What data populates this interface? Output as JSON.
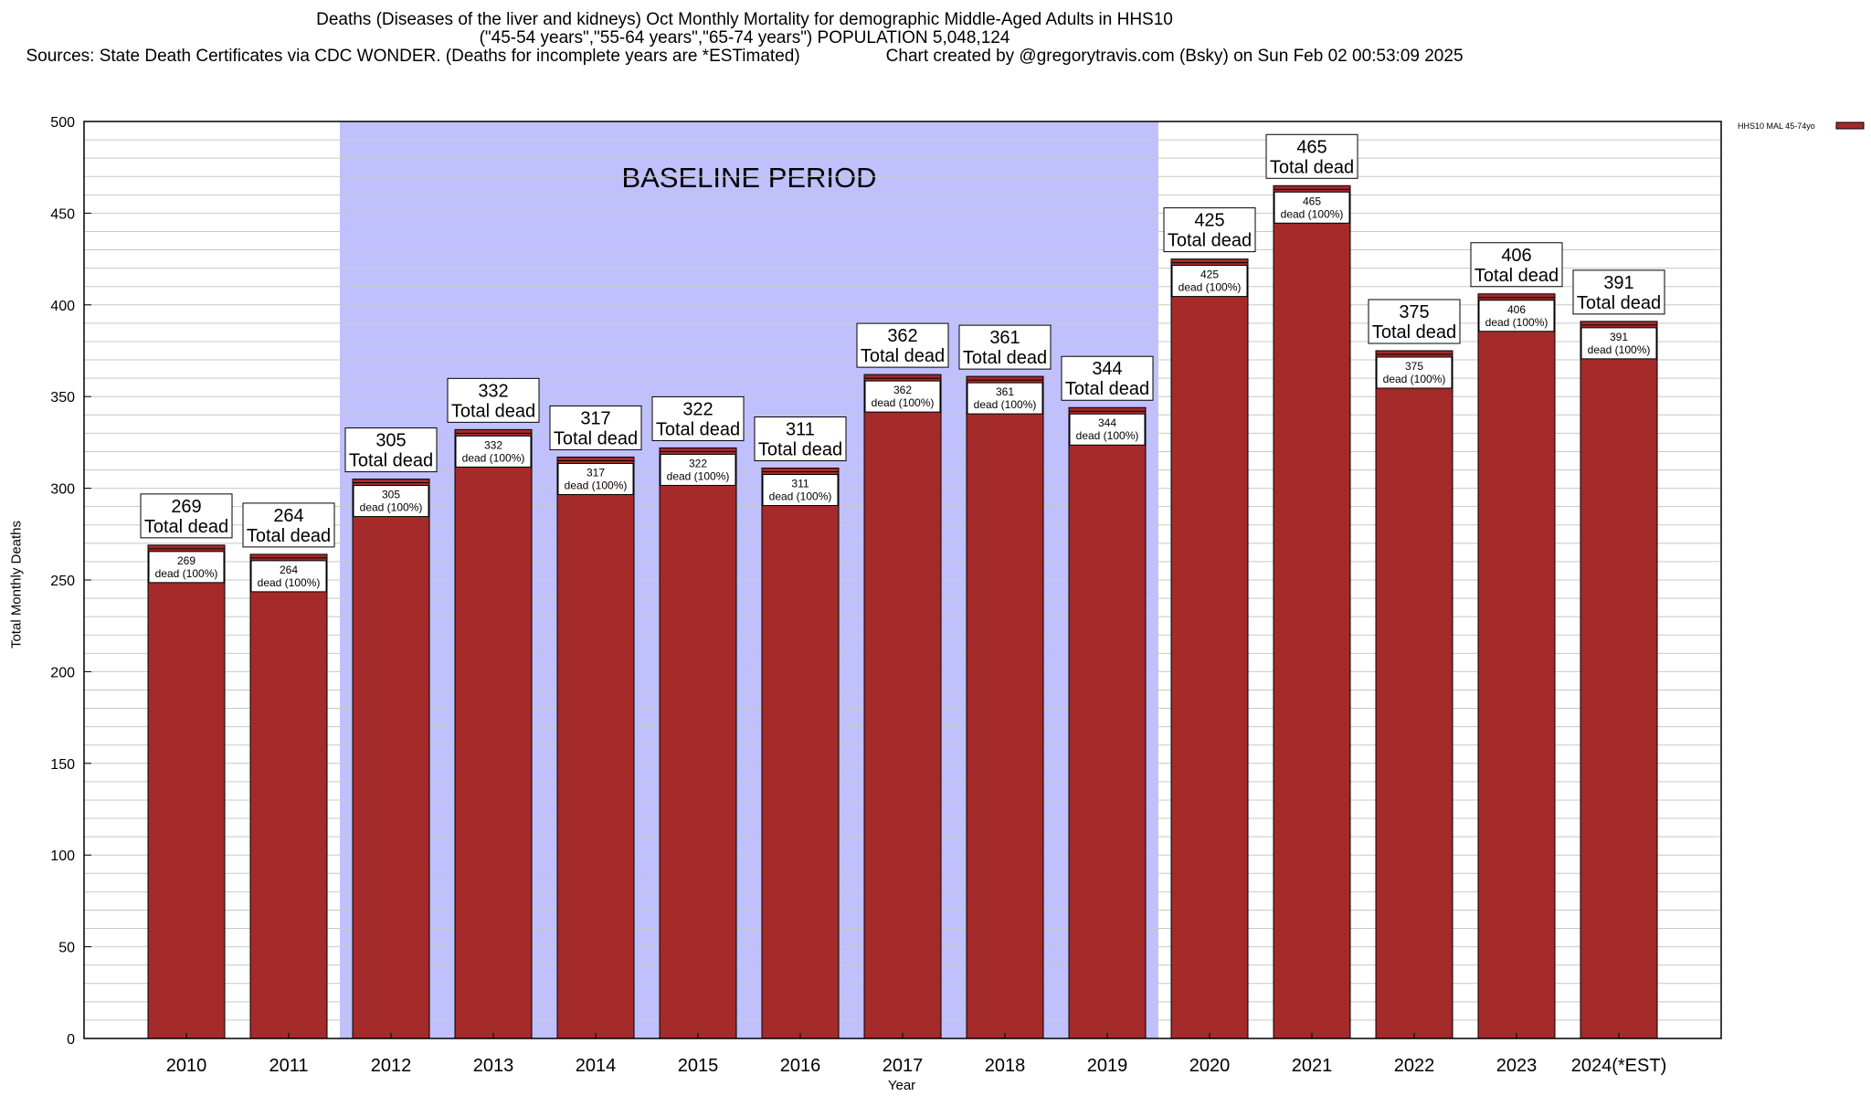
{
  "title": {
    "line1": "Deaths (Diseases of the liver and kidneys) Oct Monthly Mortality for demographic Middle-Aged Adults in HHS10",
    "line2": "(\"45-54 years\",\"55-64 years\",\"65-74 years\") POPULATION 5,048,124",
    "line3_left": "Sources: State Death Certificates via CDC WONDER. (Deaths for incomplete years are *ESTimated)",
    "line3_right": "Chart created by @gregorytravis.com (Bsky) on Sun Feb 02 00:53:09 2025"
  },
  "colors": {
    "bar": "#a52a2a",
    "baseline_shade": "#c0c0ff",
    "grid": "#c8c8c8"
  },
  "chart_data": {
    "type": "bar",
    "xlabel": "Year",
    "ylabel": "Total Monthly Deaths",
    "ylim": [
      0,
      500
    ],
    "yticks": [
      0,
      50,
      100,
      150,
      200,
      250,
      300,
      350,
      400,
      450,
      500
    ],
    "grid": true,
    "legend_position": "top-right",
    "baseline_label": "BASELINE PERIOD",
    "baseline_range": [
      "2012",
      "2019"
    ],
    "categories": [
      "2010",
      "2011",
      "2012",
      "2013",
      "2014",
      "2015",
      "2016",
      "2017",
      "2018",
      "2019",
      "2020",
      "2021",
      "2022",
      "2023",
      "2024(*EST)"
    ],
    "series": [
      {
        "name": "HHS10 MAL 45-74yo",
        "values": [
          269,
          264,
          305,
          332,
          317,
          322,
          311,
          362,
          361,
          344,
          425,
          465,
          375,
          406,
          391
        ]
      }
    ],
    "top_label_suffix": "Total dead",
    "inner_label_suffix": "dead (100%)"
  }
}
